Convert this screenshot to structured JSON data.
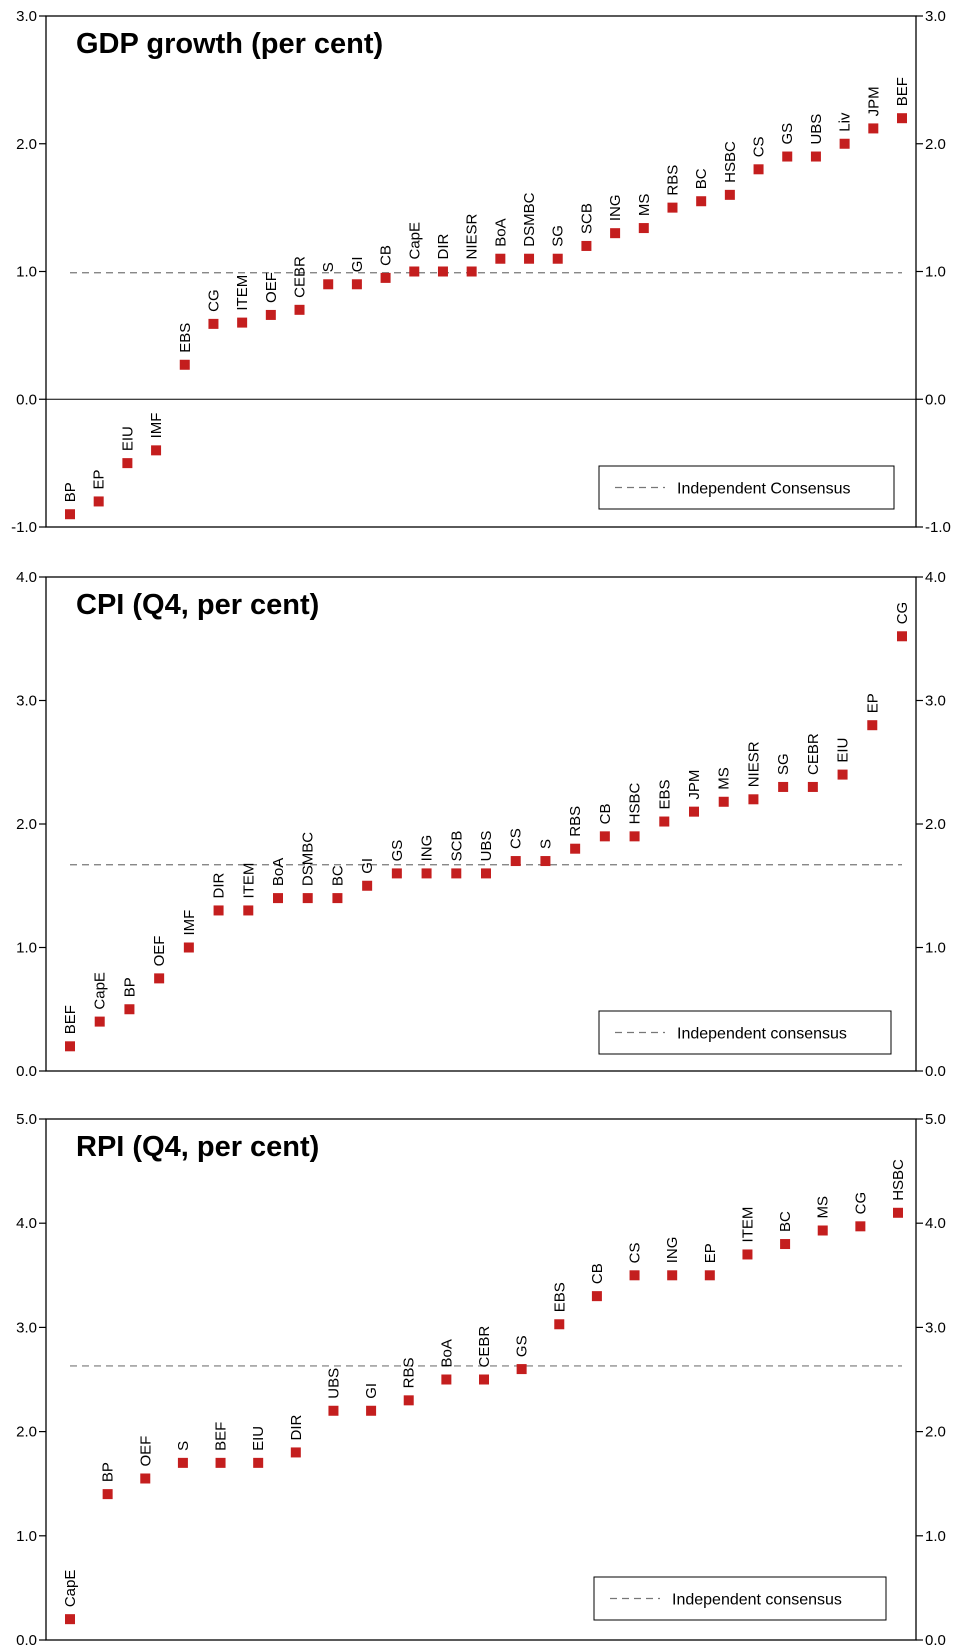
{
  "chart_data": [
    {
      "type": "scatter",
      "title": "GDP growth (per cent)",
      "ylim": [
        -1.0,
        3.0
      ],
      "yticks": [
        "3.0",
        "2.0",
        "1.0",
        "0.0",
        "-1.0"
      ],
      "y_tick_values": [
        3,
        2,
        1,
        0,
        -1
      ],
      "zero_line": true,
      "consensus": 0.99,
      "legend": "Independent Consensus",
      "legend_position": "bottom-right",
      "marker_color": "#c41e1e",
      "points": [
        {
          "label": "BP",
          "value": -0.9
        },
        {
          "label": "EP",
          "value": -0.8
        },
        {
          "label": "EIU",
          "value": -0.5
        },
        {
          "label": "IMF",
          "value": -0.4
        },
        {
          "label": "EBS",
          "value": 0.27
        },
        {
          "label": "CG",
          "value": 0.59
        },
        {
          "label": "ITEM",
          "value": 0.6
        },
        {
          "label": "OEF",
          "value": 0.66
        },
        {
          "label": "CEBR",
          "value": 0.7
        },
        {
          "label": "S",
          "value": 0.9
        },
        {
          "label": "GI",
          "value": 0.9
        },
        {
          "label": "CB",
          "value": 0.95
        },
        {
          "label": "CapE",
          "value": 1.0
        },
        {
          "label": "DIR",
          "value": 1.0
        },
        {
          "label": "NIESR",
          "value": 1.0
        },
        {
          "label": "BoA",
          "value": 1.1
        },
        {
          "label": "DSMBC",
          "value": 1.1
        },
        {
          "label": "SG",
          "value": 1.1
        },
        {
          "label": "SCB",
          "value": 1.2
        },
        {
          "label": "ING",
          "value": 1.3
        },
        {
          "label": "MS",
          "value": 1.34
        },
        {
          "label": "RBS",
          "value": 1.5
        },
        {
          "label": "BC",
          "value": 1.55
        },
        {
          "label": "HSBC",
          "value": 1.6
        },
        {
          "label": "CS",
          "value": 1.8
        },
        {
          "label": "GS",
          "value": 1.9
        },
        {
          "label": "UBS",
          "value": 1.9
        },
        {
          "label": "Liv",
          "value": 2.0
        },
        {
          "label": "JPM",
          "value": 2.12
        },
        {
          "label": "BEF",
          "value": 2.2
        }
      ]
    },
    {
      "type": "scatter",
      "title": "CPI (Q4, per cent)",
      "ylim": [
        0.0,
        4.0
      ],
      "yticks": [
        "4.0",
        "3.0",
        "2.0",
        "1.0",
        "0.0"
      ],
      "y_tick_values": [
        4,
        3,
        2,
        1,
        0
      ],
      "zero_line": false,
      "consensus": 1.67,
      "legend": "Independent consensus",
      "legend_position": "bottom-right",
      "marker_color": "#c41e1e",
      "points": [
        {
          "label": "BEF",
          "value": 0.2
        },
        {
          "label": "CapE",
          "value": 0.4
        },
        {
          "label": "BP",
          "value": 0.5
        },
        {
          "label": "OEF",
          "value": 0.75
        },
        {
          "label": "IMF",
          "value": 1.0
        },
        {
          "label": "DIR",
          "value": 1.3
        },
        {
          "label": "ITEM",
          "value": 1.3
        },
        {
          "label": "BoA",
          "value": 1.4
        },
        {
          "label": "DSMBC",
          "value": 1.4
        },
        {
          "label": "BC",
          "value": 1.4
        },
        {
          "label": "GI",
          "value": 1.5
        },
        {
          "label": "GS",
          "value": 1.6
        },
        {
          "label": "ING",
          "value": 1.6
        },
        {
          "label": "SCB",
          "value": 1.6
        },
        {
          "label": "UBS",
          "value": 1.6
        },
        {
          "label": "CS",
          "value": 1.7
        },
        {
          "label": "S",
          "value": 1.7
        },
        {
          "label": "RBS",
          "value": 1.8
        },
        {
          "label": "CB",
          "value": 1.9
        },
        {
          "label": "HSBC",
          "value": 1.9
        },
        {
          "label": "EBS",
          "value": 2.02
        },
        {
          "label": "JPM",
          "value": 2.1
        },
        {
          "label": "MS",
          "value": 2.18
        },
        {
          "label": "NIESR",
          "value": 2.2
        },
        {
          "label": "SG",
          "value": 2.3
        },
        {
          "label": "CEBR",
          "value": 2.3
        },
        {
          "label": "EIU",
          "value": 2.4
        },
        {
          "label": "EP",
          "value": 2.8
        },
        {
          "label": "CG",
          "value": 3.52
        }
      ]
    },
    {
      "type": "scatter",
      "title": "RPI (Q4, per cent)",
      "ylim": [
        0.0,
        5.0
      ],
      "yticks": [
        "5.0",
        "4.0",
        "3.0",
        "2.0",
        "1.0",
        "0.0"
      ],
      "y_tick_values": [
        5,
        4,
        3,
        2,
        1,
        0
      ],
      "zero_line": false,
      "consensus": 2.63,
      "legend": "Independent consensus",
      "legend_position": "bottom-right",
      "marker_color": "#c41e1e",
      "points": [
        {
          "label": "CapE",
          "value": 0.2
        },
        {
          "label": "BP",
          "value": 1.4
        },
        {
          "label": "OEF",
          "value": 1.55
        },
        {
          "label": "S",
          "value": 1.7
        },
        {
          "label": "BEF",
          "value": 1.7
        },
        {
          "label": "EIU",
          "value": 1.7
        },
        {
          "label": "DIR",
          "value": 1.8
        },
        {
          "label": "UBS",
          "value": 2.2
        },
        {
          "label": "GI",
          "value": 2.2
        },
        {
          "label": "RBS",
          "value": 2.3
        },
        {
          "label": "BoA",
          "value": 2.5
        },
        {
          "label": "CEBR",
          "value": 2.5
        },
        {
          "label": "GS",
          "value": 2.6
        },
        {
          "label": "EBS",
          "value": 3.03
        },
        {
          "label": "CB",
          "value": 3.3
        },
        {
          "label": "CS",
          "value": 3.5
        },
        {
          "label": "ING",
          "value": 3.5
        },
        {
          "label": "EP",
          "value": 3.5
        },
        {
          "label": "ITEM",
          "value": 3.7
        },
        {
          "label": "BC",
          "value": 3.8
        },
        {
          "label": "MS",
          "value": 3.93
        },
        {
          "label": "CG",
          "value": 3.97
        },
        {
          "label": "HSBC",
          "value": 4.1
        }
      ]
    }
  ]
}
